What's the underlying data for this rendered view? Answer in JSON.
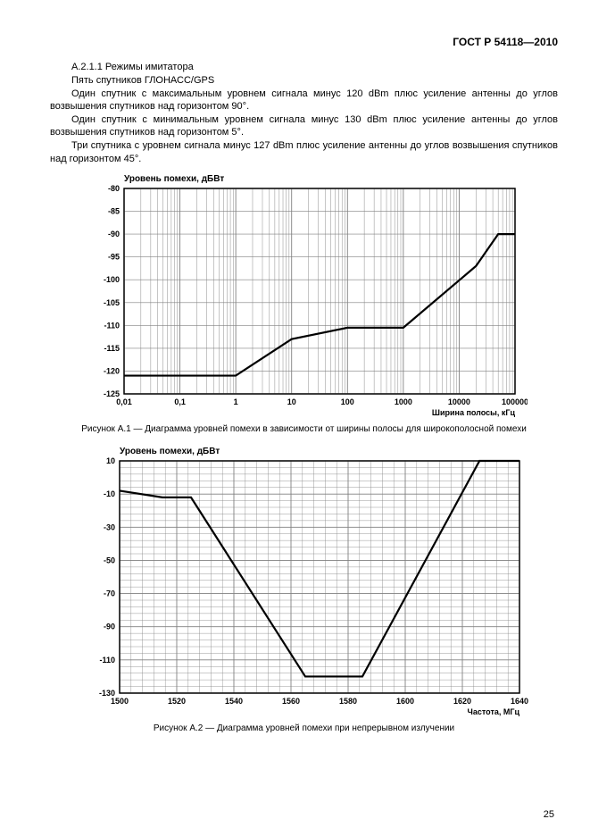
{
  "header": {
    "docnum": "ГОСТ Р 54118—2010"
  },
  "text": {
    "l1": "А.2.1.1  Режимы имитатора",
    "l2": "Пять спутников ГЛОНАСС/GPS",
    "l3": "Один спутник с максимальным уровнем сигнала минус 120 dBm плюс усиление антенны до углов возвышения спутников над горизонтом 90°.",
    "l4": "Один спутник с минимальным уровнем сигнала минус 130 dBm плюс усиление антенны до углов возвышения спутников над горизонтом 5°.",
    "l5": "Три спутника с уровнем сигнала минус 127 dBm плюс усиление антенны до углов возвышения спутников над горизонтом 45°."
  },
  "chart1": {
    "type": "line-logx",
    "title": "Уровень помехи, дБВт",
    "xlabel": "Ширина полосы, кГц",
    "xticks": [
      0.01,
      0.1,
      1,
      10,
      100,
      1000,
      10000,
      100000
    ],
    "xtick_labels": [
      "0,01",
      "0,1",
      "1",
      "10",
      "100",
      "1000",
      "10000",
      "100000"
    ],
    "yticks": [
      -125,
      -120,
      -115,
      -110,
      -105,
      -100,
      -95,
      -90,
      -85,
      -80
    ],
    "ylim": [
      -125,
      -80
    ],
    "line_width": 2.2,
    "line_color": "#000000",
    "grid_major_color": "#808080",
    "grid_minor_color": "#808080",
    "bg_color": "#ffffff",
    "border_color": "#000000",
    "font_size_axis": 9,
    "font_size_title": 10,
    "data": [
      {
        "x": 0.01,
        "y": -121
      },
      {
        "x": 1,
        "y": -121
      },
      {
        "x": 10,
        "y": -113
      },
      {
        "x": 100,
        "y": -110.5
      },
      {
        "x": 1000,
        "y": -110.5
      },
      {
        "x": 20000,
        "y": -97
      },
      {
        "x": 50000,
        "y": -90
      },
      {
        "x": 100000,
        "y": -90
      }
    ]
  },
  "caption1": "Рисунок А.1 — Диаграмма уровней помехи в зависимости от ширины полосы для широкополосной помехи",
  "chart2": {
    "type": "line",
    "title": "Уровень помехи, дБВт",
    "xlabel": "Частота, МГц",
    "xticks": [
      1500,
      1520,
      1540,
      1560,
      1580,
      1600,
      1620,
      1640
    ],
    "yticks": [
      -130,
      -110,
      -90,
      -70,
      -50,
      -30,
      -10,
      10
    ],
    "xlim": [
      1500,
      1640
    ],
    "ylim": [
      -130,
      10
    ],
    "xminor_step": 4,
    "yminor_step": 4,
    "line_width": 2.2,
    "line_color": "#000000",
    "grid_major_color": "#808080",
    "grid_minor_color": "#808080",
    "bg_color": "#ffffff",
    "border_color": "#000000",
    "font_size_axis": 9,
    "font_size_title": 10,
    "data": [
      {
        "x": 1500,
        "y": -8
      },
      {
        "x": 1515,
        "y": -12
      },
      {
        "x": 1525,
        "y": -12
      },
      {
        "x": 1565,
        "y": -120
      },
      {
        "x": 1585,
        "y": -120
      },
      {
        "x": 1626,
        "y": 10
      },
      {
        "x": 1640,
        "y": 10
      }
    ]
  },
  "caption2": "Рисунок А.2 — Диаграмма уровней помехи при непрерывном излучении",
  "pagenum": "25"
}
